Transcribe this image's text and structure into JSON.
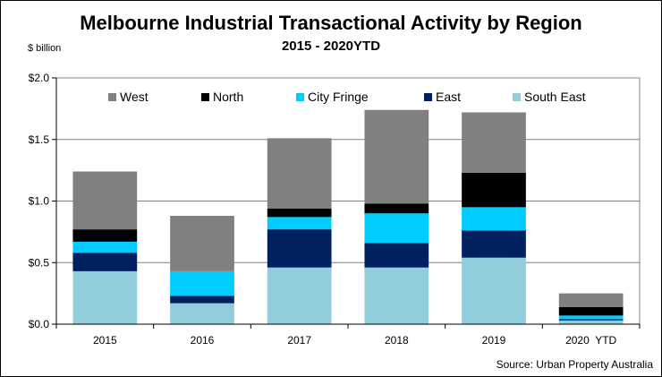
{
  "chart_data": {
    "type": "bar",
    "stacked": true,
    "title": "Melbourne Industrial Transactional Activity by Region",
    "subtitle": "2015 - 2020YTD",
    "ylabel": "$ billion",
    "xlabel": "",
    "ylim": [
      0,
      2.0
    ],
    "yticks": [
      0,
      0.5,
      1.0,
      1.5,
      2.0
    ],
    "ytick_labels": [
      "$0.0",
      "$0.5",
      "$1.0",
      "$1.5",
      "$2.0"
    ],
    "grid": true,
    "legend_position": "top",
    "categories": [
      "2015",
      "2016",
      "2017",
      "2018",
      "2019",
      "2020  YTD"
    ],
    "series": [
      {
        "name": "South East",
        "color": "#92CDDC",
        "values": [
          0.43,
          0.17,
          0.46,
          0.46,
          0.54,
          0.03
        ]
      },
      {
        "name": "East",
        "color": "#002060",
        "values": [
          0.15,
          0.06,
          0.31,
          0.2,
          0.22,
          0.01
        ]
      },
      {
        "name": "City Fringe",
        "color": "#00CCFF",
        "values": [
          0.09,
          0.2,
          0.1,
          0.24,
          0.19,
          0.03
        ]
      },
      {
        "name": "North",
        "color": "#000000",
        "values": [
          0.1,
          0.0,
          0.07,
          0.08,
          0.28,
          0.07
        ]
      },
      {
        "name": "West",
        "color": "#808080",
        "values": [
          0.47,
          0.45,
          0.57,
          0.76,
          0.49,
          0.11
        ]
      }
    ],
    "legend_order": [
      "West",
      "North",
      "City Fringe",
      "East",
      "South East"
    ],
    "source": "Source: Urban Property Australia",
    "colors": {
      "grid": "#808080",
      "axis": "#000000",
      "plot_border": "#808080"
    }
  }
}
